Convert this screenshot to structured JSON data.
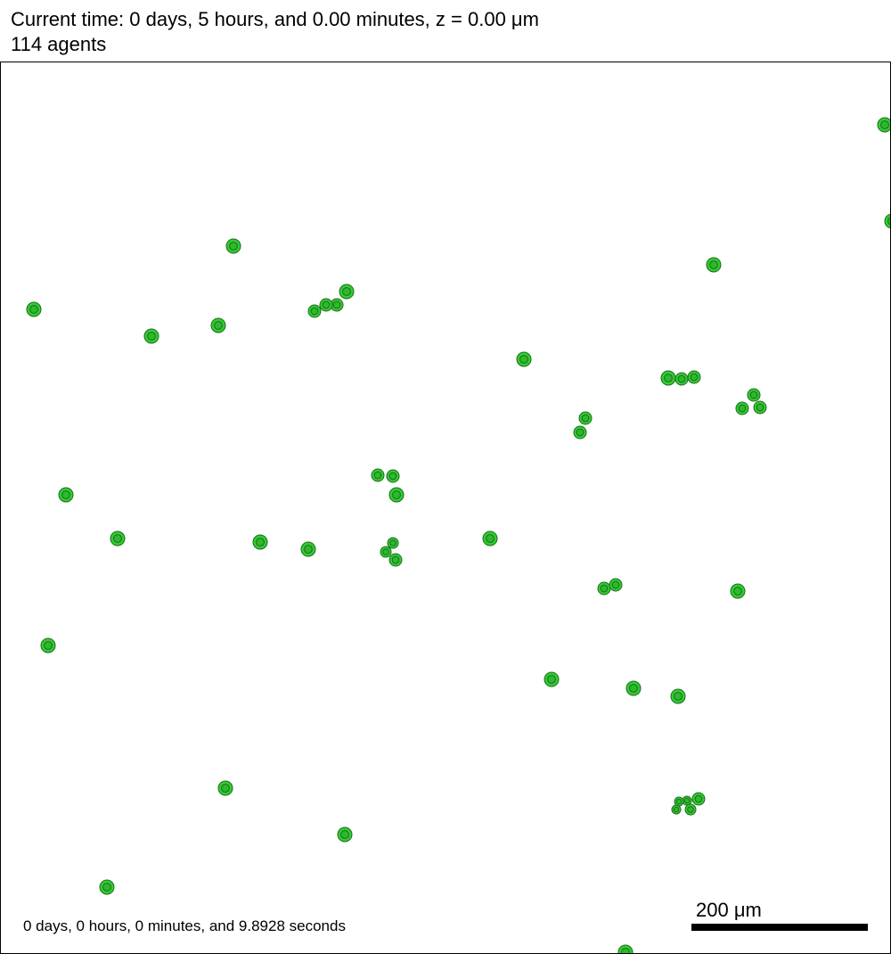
{
  "header": {
    "current_time": "Current time: 0 days, 5 hours, and 0.00 minutes, z = 0.00 μm",
    "agent_count": "114 agents"
  },
  "footer": {
    "elapsed": "0 days, 0 hours, 0 minutes, and 9.8928 seconds",
    "scale_label": "200 μm"
  },
  "colors": {
    "cell_fill": "#33cc33",
    "cell_stroke": "#1a6e1a",
    "nucleus_fill": "#2eb82e"
  },
  "cells": [
    [
      993,
      140,
      8
    ],
    [
      1001,
      248,
      8
    ],
    [
      262,
      276,
      8
    ],
    [
      801,
      297,
      8
    ],
    [
      38,
      347,
      8
    ],
    [
      389,
      327,
      8
    ],
    [
      378,
      342,
      7
    ],
    [
      366,
      342,
      7
    ],
    [
      353,
      349,
      7
    ],
    [
      170,
      377,
      8
    ],
    [
      245,
      365,
      8
    ],
    [
      588,
      403,
      8
    ],
    [
      750,
      424,
      8
    ],
    [
      765,
      425,
      7
    ],
    [
      779,
      423,
      7
    ],
    [
      846,
      443,
      7
    ],
    [
      833,
      458,
      7
    ],
    [
      853,
      457,
      7
    ],
    [
      657,
      469,
      7
    ],
    [
      651,
      485,
      7
    ],
    [
      424,
      533,
      7
    ],
    [
      441,
      534,
      7
    ],
    [
      445,
      555,
      8
    ],
    [
      74,
      555,
      8
    ],
    [
      132,
      604,
      8
    ],
    [
      292,
      608,
      8
    ],
    [
      346,
      616,
      8
    ],
    [
      441,
      609,
      6
    ],
    [
      433,
      619,
      6
    ],
    [
      444,
      628,
      7
    ],
    [
      550,
      604,
      8
    ],
    [
      678,
      660,
      7
    ],
    [
      691,
      656,
      7
    ],
    [
      828,
      663,
      8
    ],
    [
      54,
      724,
      8
    ],
    [
      619,
      762,
      8
    ],
    [
      711,
      772,
      8
    ],
    [
      761,
      781,
      8
    ],
    [
      253,
      884,
      8
    ],
    [
      784,
      896,
      7
    ],
    [
      771,
      898,
      5
    ],
    [
      762,
      899,
      5
    ],
    [
      759,
      908,
      5
    ],
    [
      775,
      908,
      6
    ],
    [
      387,
      936,
      8
    ],
    [
      120,
      995,
      8
    ],
    [
      702,
      1068,
      8
    ]
  ]
}
